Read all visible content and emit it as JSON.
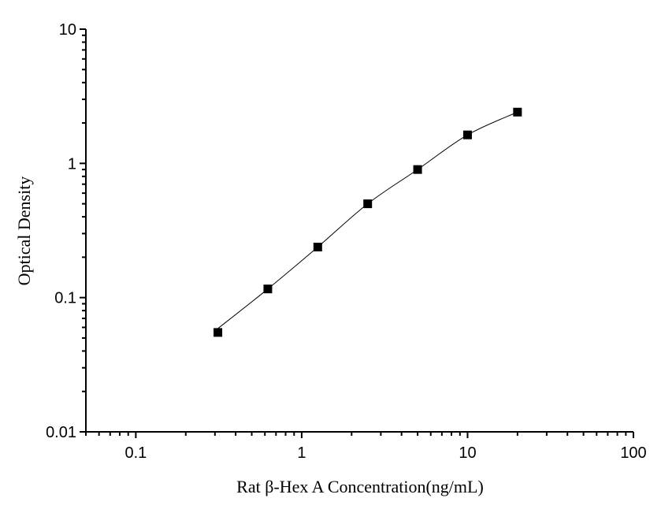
{
  "chart_data": {
    "type": "scatter",
    "title": "",
    "xlabel": "Rat β-Hex A Concentration(ng/mL)",
    "ylabel": "Optical Density",
    "x_scale": "log",
    "y_scale": "log",
    "xlim": [
      0.05,
      100
    ],
    "ylim": [
      0.01,
      10
    ],
    "x_ticks": [
      0.1,
      1,
      10,
      100
    ],
    "x_tick_labels": [
      "0.1",
      "1",
      "10",
      "100"
    ],
    "y_ticks": [
      0.01,
      0.1,
      1,
      10
    ],
    "y_tick_labels": [
      "0.01",
      "0.1",
      "1",
      "10"
    ],
    "grid": false,
    "legend": "none",
    "marker": "square",
    "color": "#000000",
    "fit_curve": true,
    "series": [
      {
        "x": [
          0.3125,
          0.625,
          1.25,
          2.5,
          5,
          10,
          20
        ],
        "y": [
          0.055,
          0.116,
          0.238,
          0.5,
          0.9,
          1.63,
          2.41
        ]
      }
    ]
  }
}
